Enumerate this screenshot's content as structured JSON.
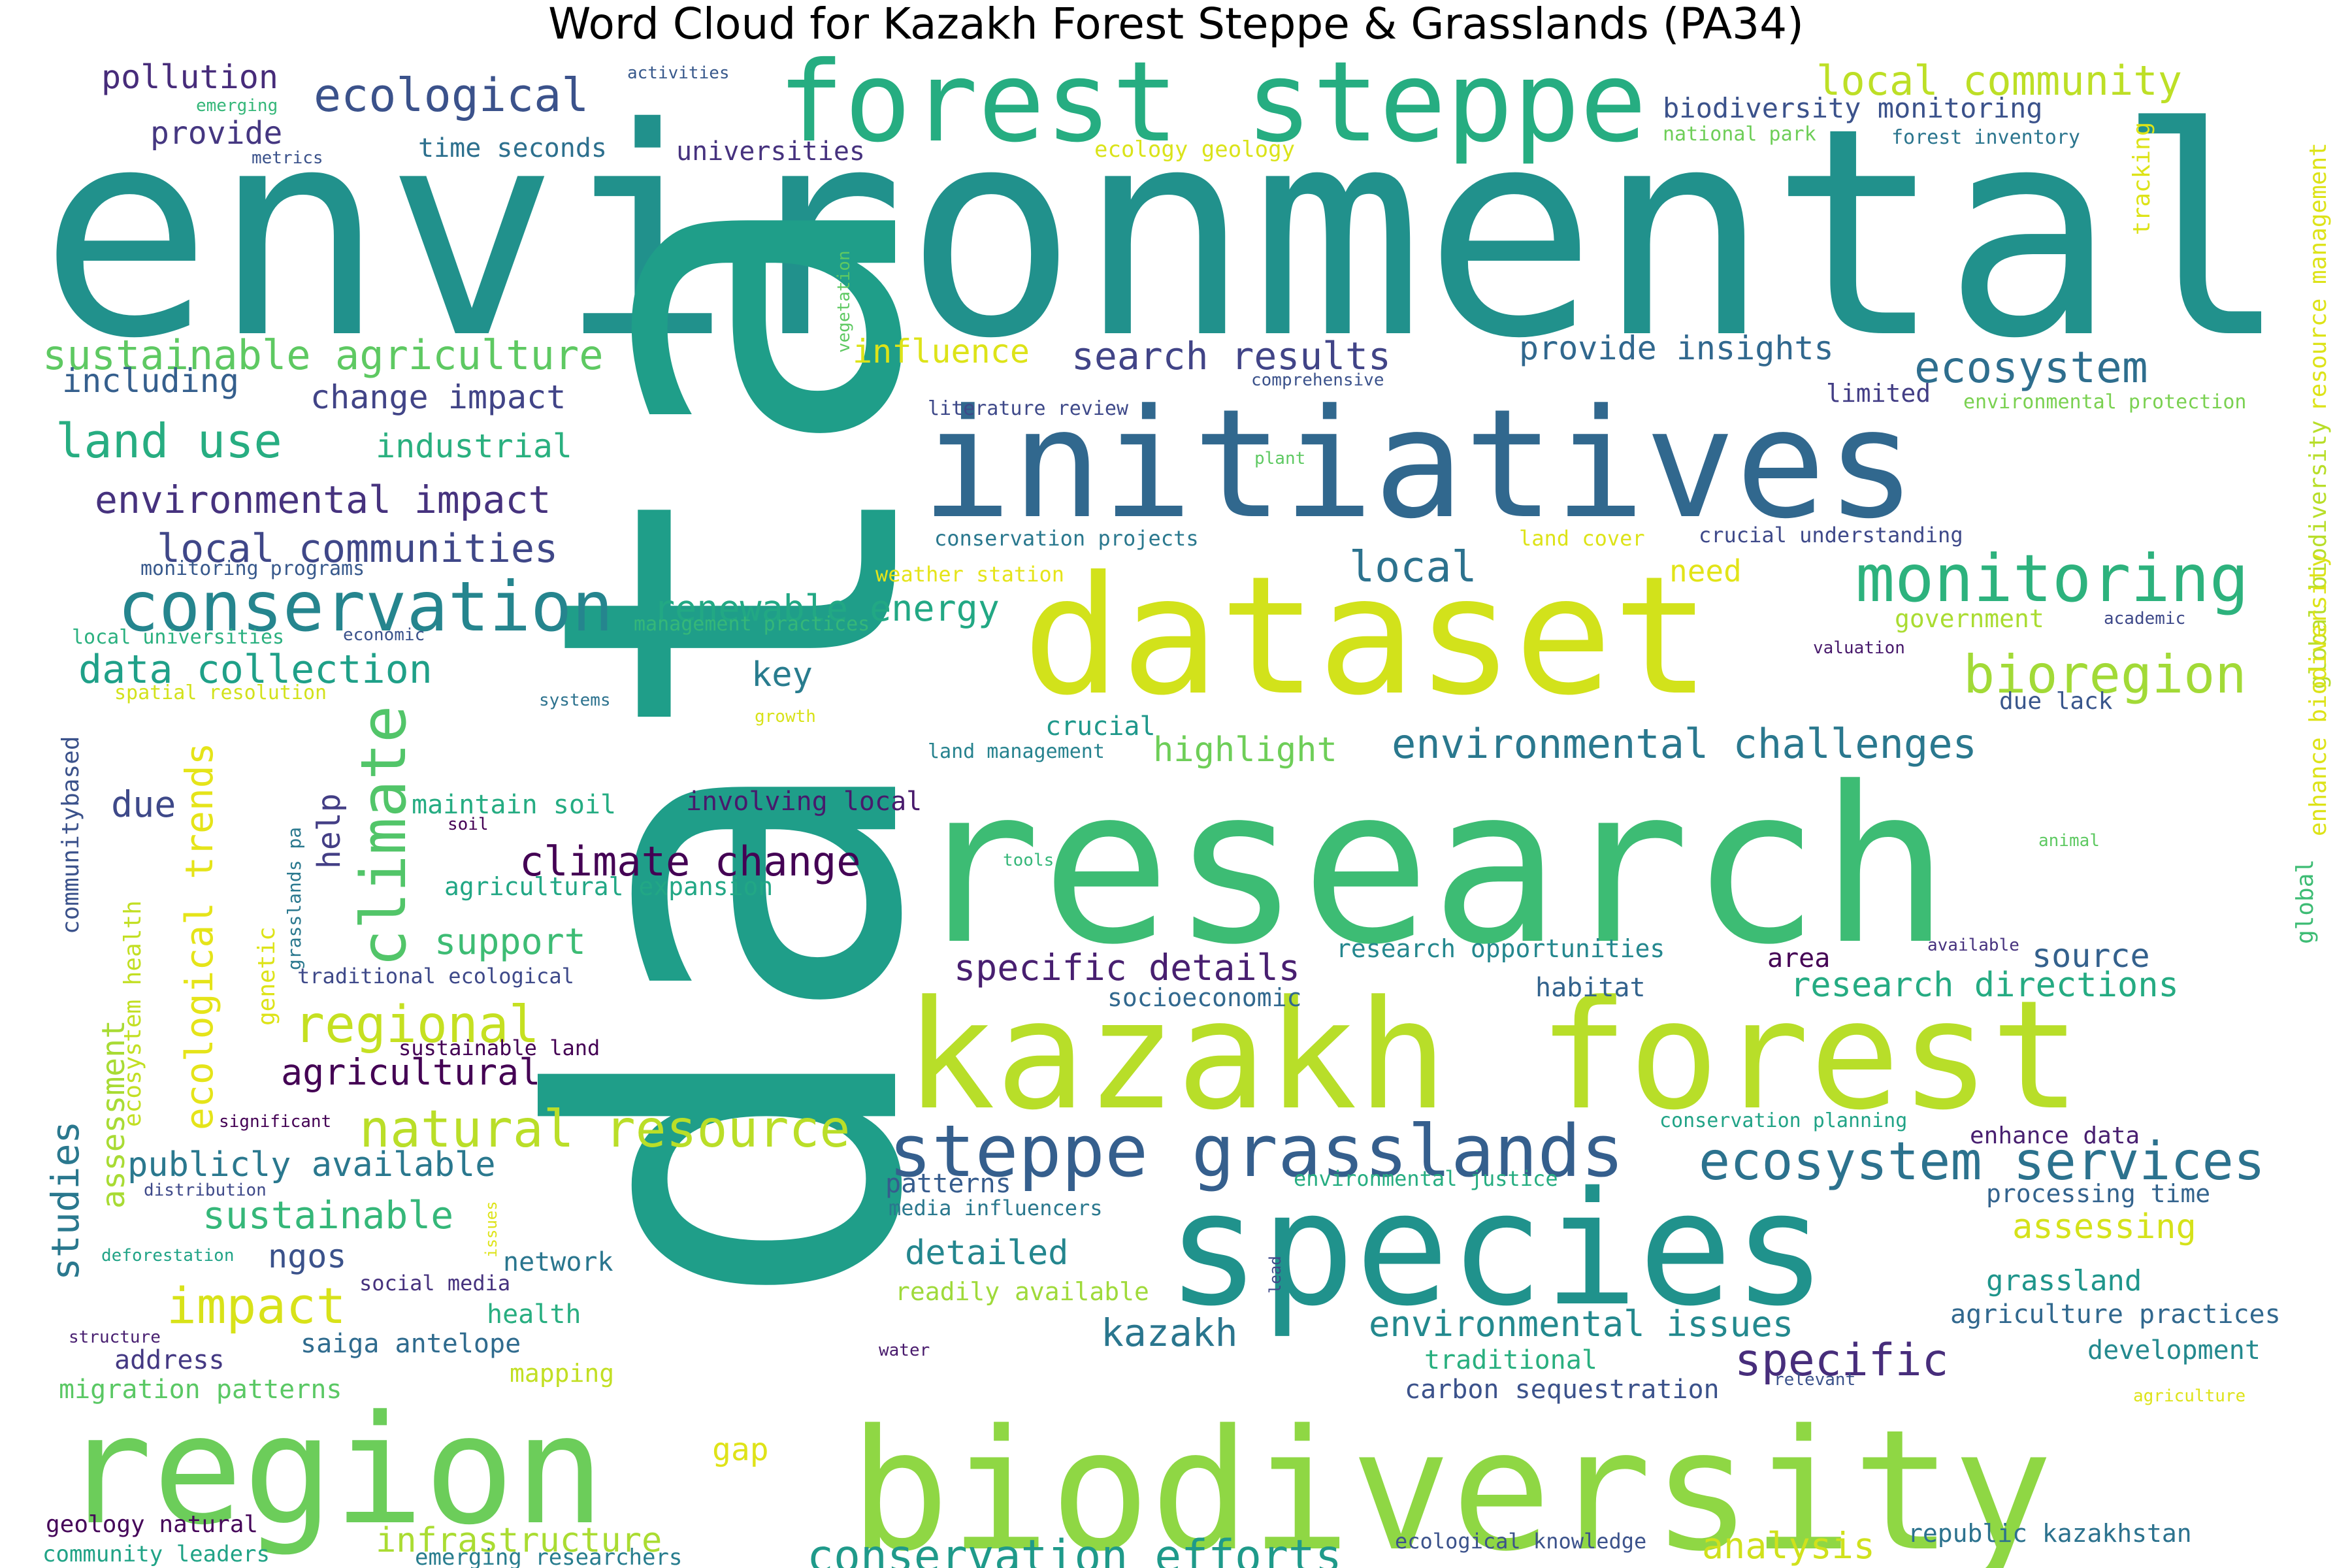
{
  "title": "Word Cloud for Kazakh Forest Steppe & Grasslands (PA34)",
  "palette": [
    "#440154",
    "#482878",
    "#3e4989",
    "#31688e",
    "#26828e",
    "#1f9e89",
    "#35b779",
    "#6ece58",
    "#b5de2b",
    "#fde725"
  ],
  "words": [
    {
      "text": "environmental",
      "color": "#21918c"
    },
    {
      "text": "data",
      "color": "#1f9e89"
    },
    {
      "text": "research",
      "color": "#3dbc74"
    },
    {
      "text": "initiatives",
      "color": "#31688e"
    },
    {
      "text": "dataset",
      "color": "#d2e21b"
    },
    {
      "text": "forest steppe",
      "color": "#26ad81"
    },
    {
      "text": "species",
      "color": "#20928c"
    },
    {
      "text": "kazakh forest",
      "color": "#b8de29"
    },
    {
      "text": "biodiversity",
      "color": "#8fd744"
    },
    {
      "text": "region",
      "color": "#6ccd5a"
    },
    {
      "text": "steppe grasslands",
      "color": "#355f8d"
    },
    {
      "text": "conservation",
      "color": "#25858e"
    },
    {
      "text": "monitoring",
      "color": "#2db27d"
    },
    {
      "text": "ecosystem services",
      "color": "#2c728e"
    },
    {
      "text": "climate",
      "color": "#52c569"
    },
    {
      "text": "ecological",
      "color": "#3b528b"
    },
    {
      "text": "local community",
      "color": "#bddf26"
    },
    {
      "text": "bioregion",
      "color": "#a2da37"
    },
    {
      "text": "sustainable agriculture",
      "color": "#5ec962"
    },
    {
      "text": "land use",
      "color": "#27ad81"
    },
    {
      "text": "ecosystem",
      "color": "#2e6e8e"
    },
    {
      "text": "regional",
      "color": "#c5e021"
    },
    {
      "text": "natural resource",
      "color": "#bade28"
    },
    {
      "text": "impact",
      "color": "#d8e219"
    },
    {
      "text": "local communities",
      "color": "#3f4788"
    },
    {
      "text": "environmental impact",
      "color": "#46327e"
    },
    {
      "text": "renewable energy",
      "color": "#22a884"
    },
    {
      "text": "data collection",
      "color": "#1fa088"
    },
    {
      "text": "ecological trends",
      "color": "#e5e419"
    },
    {
      "text": "environmental challenges",
      "color": "#2a788e"
    },
    {
      "text": "search results",
      "color": "#414487"
    },
    {
      "text": "climate change",
      "color": "#440154"
    },
    {
      "text": "conservation efforts",
      "color": "#1f9a8a"
    },
    {
      "text": "environmental issues",
      "color": "#23898e"
    },
    {
      "text": "specific",
      "color": "#472d7b"
    },
    {
      "text": "kazakh",
      "color": "#2a768e"
    },
    {
      "text": "specific details",
      "color": "#481f70"
    },
    {
      "text": "research directions",
      "color": "#25ab82"
    },
    {
      "text": "local",
      "color": "#2c728e"
    },
    {
      "text": "infrastructure",
      "color": "#aadc32"
    },
    {
      "text": "analysis",
      "color": "#d0e11c"
    },
    {
      "text": "sustainable",
      "color": "#35b779"
    },
    {
      "text": "publicly available",
      "color": "#2a788e"
    },
    {
      "text": "agricultural",
      "color": "#440154"
    },
    {
      "text": "provide insights",
      "color": "#31688e"
    },
    {
      "text": "pollution",
      "color": "#472c7a"
    },
    {
      "text": "biodiversity monitoring",
      "color": "#3b528b"
    },
    {
      "text": "change impact",
      "color": "#414487"
    },
    {
      "text": "including",
      "color": "#355f8d"
    },
    {
      "text": "industrial",
      "color": "#2ab07f"
    },
    {
      "text": "influence",
      "color": "#dde318"
    },
    {
      "text": "highlight",
      "color": "#6ece58"
    },
    {
      "text": "key",
      "color": "#287c8e"
    },
    {
      "text": "need",
      "color": "#e2e418"
    },
    {
      "text": "source",
      "color": "#34618d"
    },
    {
      "text": "support",
      "color": "#3dbc74"
    },
    {
      "text": "studies",
      "color": "#2a788e"
    },
    {
      "text": "assessment",
      "color": "#a8db34"
    },
    {
      "text": "due",
      "color": "#3e4989"
    },
    {
      "text": "help",
      "color": "#433e85"
    },
    {
      "text": "detailed",
      "color": "#24868e"
    },
    {
      "text": "ngos",
      "color": "#3b528b"
    },
    {
      "text": "assessing",
      "color": "#d5e21a"
    },
    {
      "text": "gap",
      "color": "#dfe318"
    },
    {
      "text": "provide",
      "color": "#453781"
    },
    {
      "text": "habitat",
      "color": "#33638d"
    },
    {
      "text": "grassland",
      "color": "#1f958b"
    },
    {
      "text": "maintain soil",
      "color": "#25ac82"
    },
    {
      "text": "involving local",
      "color": "#481a6c"
    },
    {
      "text": "agricultural expansion",
      "color": "#22a785"
    },
    {
      "text": "crucial",
      "color": "#1f988b"
    },
    {
      "text": "socioeconomic",
      "color": "#31688e"
    },
    {
      "text": "mapping",
      "color": "#c2df23"
    },
    {
      "text": "health",
      "color": "#28ae80"
    },
    {
      "text": "saiga antelope",
      "color": "#2f6b8e"
    },
    {
      "text": "address",
      "color": "#443983"
    },
    {
      "text": "network",
      "color": "#2a768e"
    },
    {
      "text": "migration patterns",
      "color": "#5ac864"
    },
    {
      "text": "geology natural",
      "color": "#450559"
    },
    {
      "text": "community leaders",
      "color": "#20a386"
    },
    {
      "text": "emerging researchers",
      "color": "#287d8e"
    },
    {
      "text": "republic kazakhstan",
      "color": "#2c728e"
    },
    {
      "text": "development",
      "color": "#23898e"
    },
    {
      "text": "agriculture practices",
      "color": "#31688e"
    },
    {
      "text": "carbon sequestration",
      "color": "#3b528b"
    },
    {
      "text": "traditional",
      "color": "#29af7f"
    },
    {
      "text": "processing time",
      "color": "#33638d"
    },
    {
      "text": "enhance data",
      "color": "#481f70"
    },
    {
      "text": "area",
      "color": "#440154"
    },
    {
      "text": "research opportunities",
      "color": "#24878e"
    },
    {
      "text": "patterns",
      "color": "#365c8d"
    },
    {
      "text": "readily available",
      "color": "#9fda3a"
    },
    {
      "text": "environmental protection",
      "color": "#7ad151"
    },
    {
      "text": "government",
      "color": "#aadc32"
    },
    {
      "text": "due lack",
      "color": "#39568c"
    },
    {
      "text": "limited",
      "color": "#433e85"
    },
    {
      "text": "time seconds",
      "color": "#2d708e"
    },
    {
      "text": "universities",
      "color": "#46327e"
    },
    {
      "text": "forest inventory",
      "color": "#2b758e"
    },
    {
      "text": "national park",
      "color": "#6ece58"
    },
    {
      "text": "ecology geology",
      "color": "#dae319"
    },
    {
      "text": "activities",
      "color": "#38598c"
    },
    {
      "text": "emerging",
      "color": "#35b779"
    },
    {
      "text": "metrics",
      "color": "#3b528b"
    },
    {
      "text": "literature review",
      "color": "#3e4989"
    },
    {
      "text": "comprehensive",
      "color": "#3b528b"
    },
    {
      "text": "plant",
      "color": "#5ec962"
    },
    {
      "text": "conservation projects",
      "color": "#2a788e"
    },
    {
      "text": "land cover",
      "color": "#dde318"
    },
    {
      "text": "crucial understanding",
      "color": "#3e4989"
    },
    {
      "text": "weather station",
      "color": "#e5e419"
    },
    {
      "text": "monitoring programs",
      "color": "#38598c"
    },
    {
      "text": "management practices",
      "color": "#35b779"
    },
    {
      "text": "local universities",
      "color": "#2ab07f"
    },
    {
      "text": "economic",
      "color": "#3b528b"
    },
    {
      "text": "spatial resolution",
      "color": "#d2e21b"
    },
    {
      "text": "systems",
      "color": "#2c728e"
    },
    {
      "text": "growth",
      "color": "#d8e219"
    },
    {
      "text": "land management",
      "color": "#26828e"
    },
    {
      "text": "academic",
      "color": "#3e4989"
    },
    {
      "text": "valuation",
      "color": "#481a6c"
    },
    {
      "text": "tools",
      "color": "#35b779"
    },
    {
      "text": "animal",
      "color": "#5ec962"
    },
    {
      "text": "available",
      "color": "#46327e"
    },
    {
      "text": "traditional ecological",
      "color": "#3e4989"
    },
    {
      "text": "sustainable land",
      "color": "#440154"
    },
    {
      "text": "significant",
      "color": "#440154"
    },
    {
      "text": "distribution",
      "color": "#3e4989"
    },
    {
      "text": "deforestation",
      "color": "#20a386"
    },
    {
      "text": "structure",
      "color": "#481f70"
    },
    {
      "text": "social media",
      "color": "#46327e"
    },
    {
      "text": "media influencers",
      "color": "#2a788e"
    },
    {
      "text": "environmental justice",
      "color": "#26ad81"
    },
    {
      "text": "conservation planning",
      "color": "#20a386"
    },
    {
      "text": "ecological knowledge",
      "color": "#3b528b"
    },
    {
      "text": "water",
      "color": "#481a6c"
    },
    {
      "text": "relevant",
      "color": "#3b528b"
    },
    {
      "text": "agriculture",
      "color": "#dde318"
    },
    {
      "text": "soil",
      "color": "#440154"
    },
    {
      "text": "issues",
      "color": "#dde318"
    },
    {
      "text": "lead",
      "color": "#3e4989"
    },
    {
      "text": "vegetation",
      "color": "#5ec962"
    },
    {
      "text": "tracking",
      "color": "#dde318"
    },
    {
      "text": "resource management",
      "color": "#dde318"
    },
    {
      "text": "global biodiversity",
      "color": "#b8de29"
    },
    {
      "text": "enhance biodiversity",
      "color": "#dde318"
    },
    {
      "text": "global",
      "color": "#3dbc74"
    },
    {
      "text": "communitybased",
      "color": "#3b528b"
    },
    {
      "text": "ecosystem health",
      "color": "#c2df23"
    },
    {
      "text": "grasslands pa",
      "color": "#2a788e"
    },
    {
      "text": "genetic",
      "color": "#dde318"
    }
  ]
}
